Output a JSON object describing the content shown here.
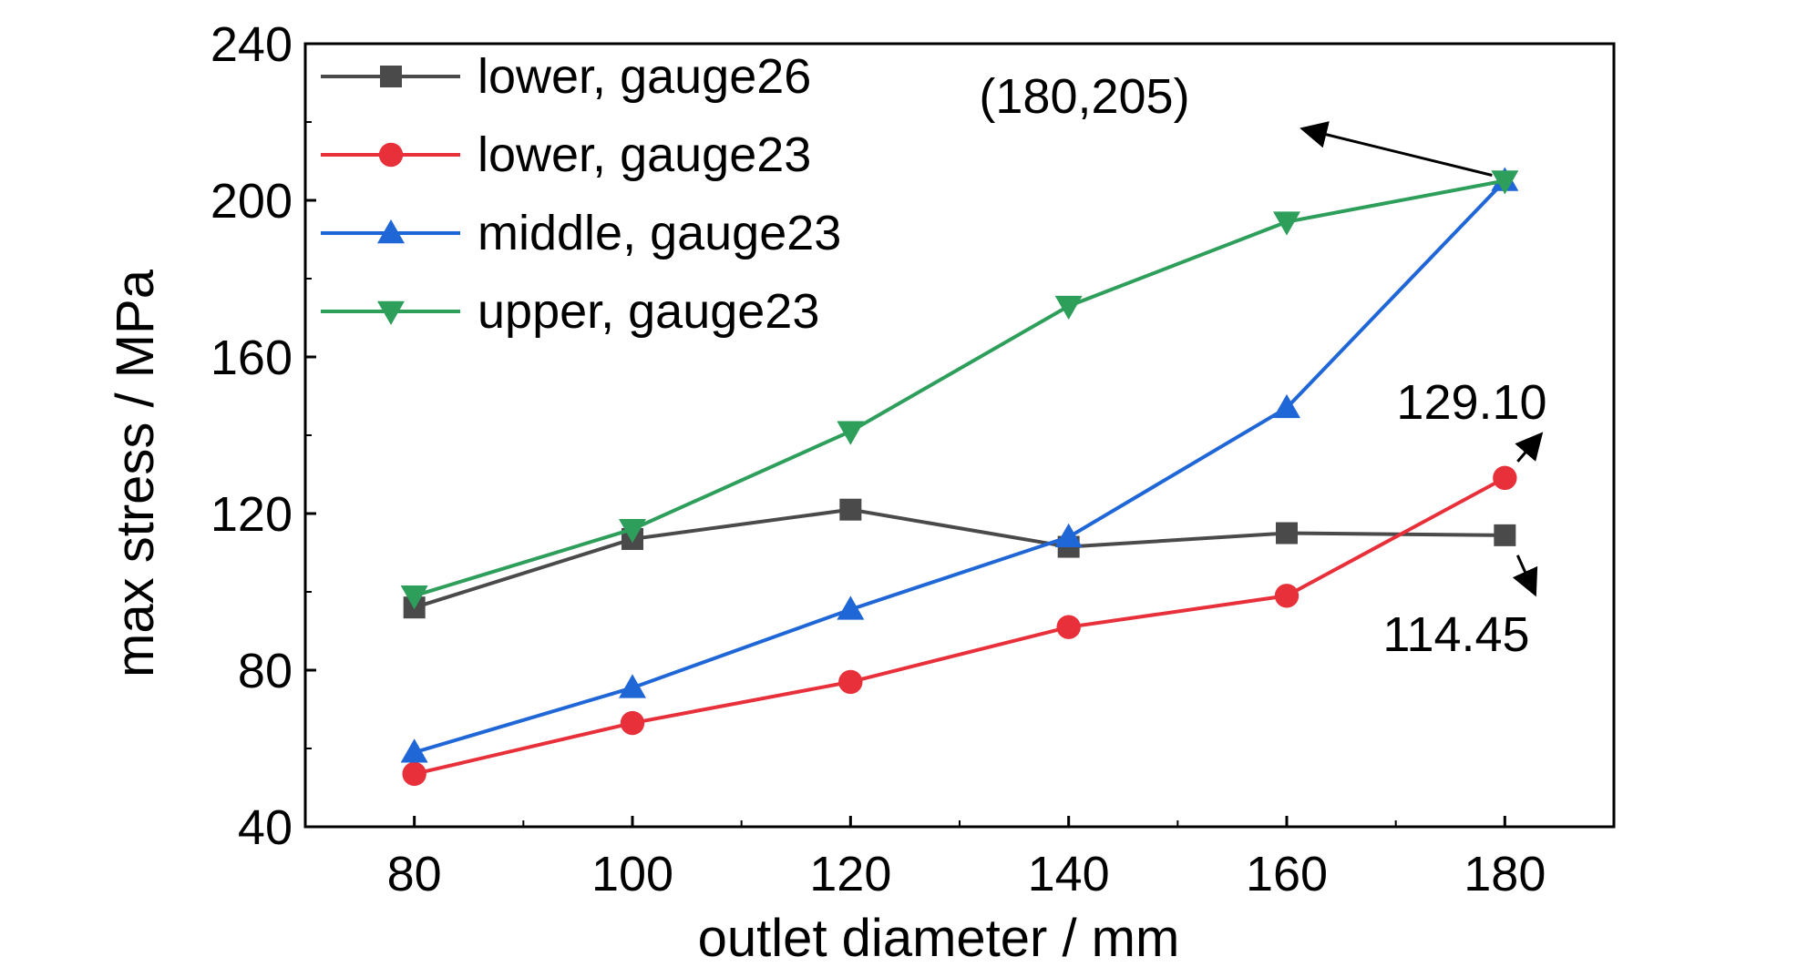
{
  "chart_data": {
    "type": "line",
    "xlabel": "outlet diameter / mm",
    "ylabel": "max stress / MPa",
    "xlim": [
      70,
      190
    ],
    "ylim": [
      40,
      240
    ],
    "xticks": [
      80,
      100,
      120,
      140,
      160,
      180
    ],
    "yticks": [
      40,
      80,
      120,
      160,
      200,
      240
    ],
    "x": [
      80,
      100,
      120,
      140,
      160,
      180
    ],
    "grid": false,
    "legend_position": "top-left",
    "series": [
      {
        "name": "lower, gauge26",
        "color": "#4a4a4a",
        "marker": "square",
        "values": [
          96,
          113.5,
          121,
          111.5,
          115,
          114.45
        ]
      },
      {
        "name": "lower, gauge23",
        "color": "#e8303a",
        "marker": "circle",
        "values": [
          53.5,
          66.5,
          77,
          91,
          99,
          129.1
        ]
      },
      {
        "name": "middle, gauge23",
        "color": "#1f66d6",
        "marker": "triangle-up",
        "values": [
          59,
          75.5,
          95.5,
          114,
          147,
          205
        ]
      },
      {
        "name": "upper, gauge23",
        "color": "#2e9e5b",
        "marker": "triangle-down",
        "values": [
          99,
          116,
          141,
          173,
          194.5,
          205
        ]
      }
    ],
    "annotations": [
      {
        "text": "(180,205)",
        "x": 180,
        "y": 205
      },
      {
        "text": "129.10",
        "x": 180,
        "y": 129.1
      },
      {
        "text": "114.45",
        "x": 180,
        "y": 114.45
      }
    ]
  }
}
